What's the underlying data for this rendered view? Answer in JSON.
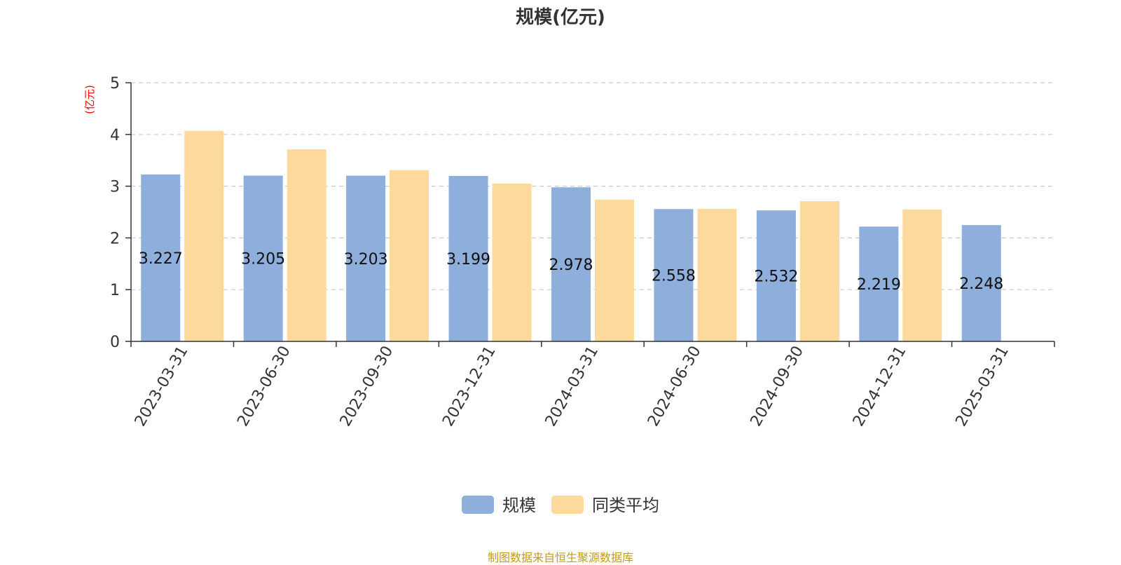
{
  "chart_data": {
    "type": "bar",
    "title": "规模(亿元)",
    "ylabel": "(亿元)",
    "categories": [
      "2023-03-31",
      "2023-06-30",
      "2023-09-30",
      "2023-12-31",
      "2024-03-31",
      "2024-06-30",
      "2024-09-30",
      "2024-12-31",
      "2025-03-31"
    ],
    "series": [
      {
        "name": "规模",
        "color": "#8eaedb",
        "values": [
          3.227,
          3.205,
          3.203,
          3.199,
          2.978,
          2.558,
          2.532,
          2.219,
          2.248
        ],
        "labels": [
          "3.227",
          "3.205",
          "3.203",
          "3.199",
          "2.978",
          "2.558",
          "2.532",
          "2.219",
          "2.248"
        ]
      },
      {
        "name": "同类平均",
        "color": "#fdd99b",
        "values": [
          4.07,
          3.71,
          3.31,
          3.05,
          2.74,
          2.56,
          2.71,
          2.55,
          null
        ]
      }
    ],
    "ylim": [
      0,
      5
    ],
    "yticks": [
      "0",
      "1",
      "2",
      "3",
      "4",
      "5"
    ],
    "grid": true,
    "legend_position": "bottom-center"
  },
  "footer": {
    "source": "制图数据来自恒生聚源数据库"
  },
  "colors": {
    "axis": "#333333",
    "grid": "#cccccc",
    "ylabel": "#ff0000",
    "source": "#c49a1a"
  }
}
